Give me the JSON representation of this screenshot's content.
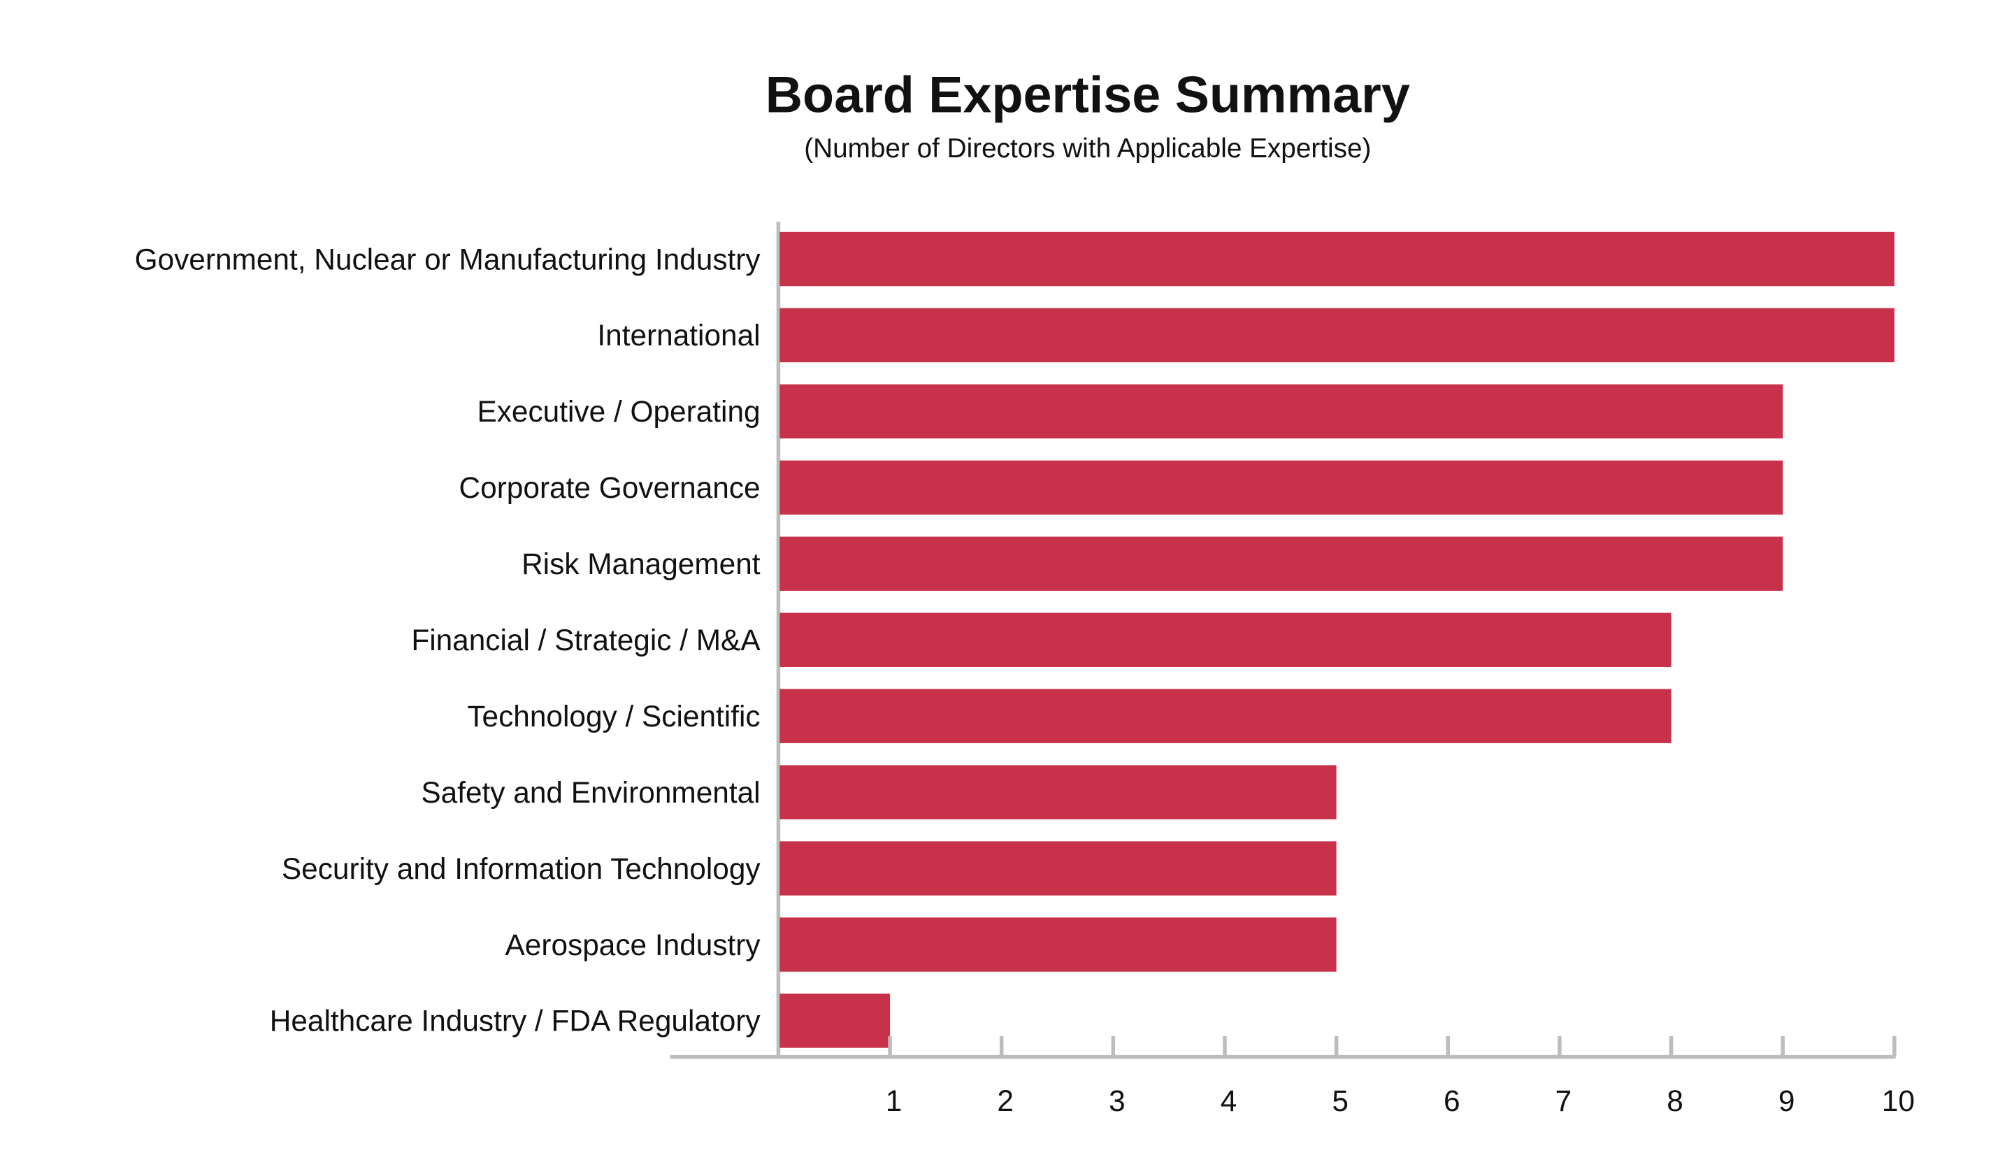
{
  "chart_data": {
    "type": "bar",
    "orientation": "horizontal",
    "title": "Board Expertise Summary",
    "subtitle": "(Number of Directors with Applicable Expertise)",
    "categories": [
      "Government, Nuclear or Manufacturing Industry",
      "International",
      "Executive / Operating",
      "Corporate Governance",
      "Risk Management",
      "Financial / Strategic / M&A",
      "Technology / Scientific",
      "Safety and Environmental",
      "Security and Information Technology",
      "Aerospace Industry",
      "Healthcare Industry / FDA Regulatory"
    ],
    "values": [
      10,
      10,
      9,
      9,
      9,
      8,
      8,
      5,
      5,
      5,
      1
    ],
    "xlabel": "",
    "ylabel": "",
    "xlim": [
      0,
      10
    ],
    "xticks": [
      "1",
      "2",
      "3",
      "4",
      "5",
      "6",
      "7",
      "8",
      "9",
      "10"
    ],
    "grid": false,
    "bar_color": "#C8314A",
    "axis_color": "#BDBDBD"
  }
}
